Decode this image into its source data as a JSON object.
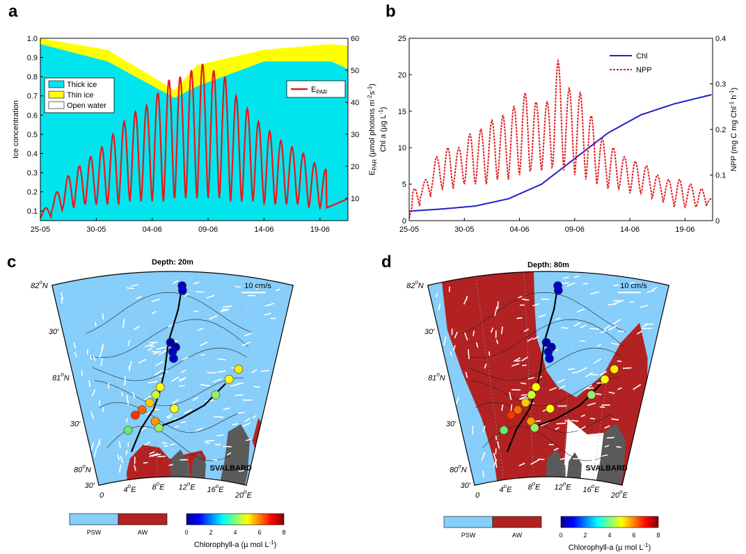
{
  "panel_letters": {
    "a": "a",
    "b": "b",
    "c": "c",
    "d": "d"
  },
  "chart_data": [
    {
      "type": "area",
      "panel": "a",
      "ylabel": "Ice concentration",
      "y2label": "E",
      "y2label_sub": "PAR",
      "y2label_rest": " (µmol photons m",
      "y2label_tail": "s",
      "x_ticks": [
        "25-05",
        "30-05",
        "04-06",
        "09-06",
        "14-06",
        "19-06"
      ],
      "x_tick_days": [
        0,
        5,
        10,
        15,
        20,
        25
      ],
      "xlim": [
        0,
        27.5
      ],
      "ylim": [
        0.05,
        1.0
      ],
      "y_ticks": [
        "0.1",
        "0.2",
        "0.3",
        "0.4",
        "0.5",
        "0.6",
        "0.7",
        "0.8",
        "0.9",
        "1.0"
      ],
      "y2lim": [
        3,
        60
      ],
      "y2_ticks": [
        "10",
        "20",
        "30",
        "40",
        "50",
        "60"
      ],
      "legend": [
        "Thick ice",
        "Thin ice",
        "Open water"
      ],
      "legend2": "E",
      "legend2_sub": "PAR",
      "colors": {
        "thick": "#00e5ee",
        "thin": "#ffff00",
        "open": "#ffffff",
        "epar": "#e31a1c"
      },
      "series": [
        {
          "name": "Thick ice",
          "x": [
            0,
            6,
            12,
            14,
            20,
            26,
            27.5
          ],
          "values": [
            0.97,
            0.88,
            0.69,
            0.75,
            0.88,
            0.88,
            0.84
          ]
        },
        {
          "name": "Thin ice",
          "x": [
            0,
            6,
            12,
            14,
            20,
            26,
            27.5
          ],
          "values": [
            0.03,
            0.06,
            0.04,
            0.11,
            0.06,
            0.09,
            0.12
          ]
        },
        {
          "name": "E_PAR",
          "axis": "right",
          "day_peaks": [
            7,
            12,
            17,
            20,
            23,
            26,
            30,
            34,
            37,
            39,
            43,
            47,
            48,
            50,
            52,
            50,
            48,
            42,
            38,
            34,
            31,
            28,
            26,
            24,
            21,
            19,
            9,
            10
          ],
          "night_min": [
            4,
            6,
            7,
            8,
            8,
            8,
            8,
            9,
            9,
            9,
            9,
            9,
            10,
            10,
            10,
            10,
            10,
            9,
            9,
            9,
            8,
            8,
            8,
            8,
            7,
            7,
            7,
            8
          ]
        }
      ]
    },
    {
      "type": "line",
      "panel": "b",
      "ylabel": "Chl a (µg L",
      "y2label": "NPP (mg C mg Chl",
      "x_ticks": [
        "25-05",
        "30-05",
        "04-06",
        "09-06",
        "14-06",
        "19-06"
      ],
      "x_tick_days": [
        0,
        5,
        10,
        15,
        20,
        25
      ],
      "xlim": [
        0,
        27.5
      ],
      "ylim": [
        0,
        25
      ],
      "y_ticks": [
        "0",
        "5",
        "10",
        "15",
        "20",
        "25"
      ],
      "y2lim": [
        0,
        0.4
      ],
      "y2_ticks": [
        "0",
        "0.1",
        "0.2",
        "0.3",
        "0.4"
      ],
      "legend": [
        "Chl",
        "NPP"
      ],
      "colors": {
        "chl": "#1f1fcc",
        "npp": "#e31a1c"
      },
      "series": [
        {
          "name": "Chl",
          "x": [
            0,
            3,
            6,
            9,
            12,
            15,
            18,
            21,
            24,
            27.5
          ],
          "values": [
            1.3,
            1.6,
            2.0,
            3.0,
            5.0,
            8.5,
            12.0,
            14.5,
            16.0,
            17.3
          ]
        },
        {
          "name": "NPP",
          "axis": "right",
          "day_peaks": [
            0.07,
            0.09,
            0.14,
            0.16,
            0.16,
            0.19,
            0.2,
            0.22,
            0.23,
            0.25,
            0.28,
            0.26,
            0.26,
            0.35,
            0.29,
            0.28,
            0.23,
            0.18,
            0.16,
            0.14,
            0.13,
            0.12,
            0.1,
            0.09,
            0.09,
            0.08,
            0.07,
            0.05
          ],
          "night_min": [
            0.03,
            0.05,
            0.07,
            0.07,
            0.08,
            0.08,
            0.08,
            0.09,
            0.09,
            0.1,
            0.1,
            0.11,
            0.11,
            0.12,
            0.11,
            0.1,
            0.09,
            0.08,
            0.07,
            0.07,
            0.06,
            0.06,
            0.05,
            0.04,
            0.03,
            0.03,
            0.03,
            0.04
          ]
        }
      ]
    }
  ],
  "maps": [
    {
      "panel": "c",
      "depth": "Depth: 20m",
      "aw_variant": "small"
    },
    {
      "panel": "d",
      "depth": "Depth: 80m",
      "aw_variant": "large"
    }
  ],
  "map_labels": {
    "lat82": "82",
    "lat81": "81",
    "lat80": "80",
    "N": "N",
    "min30": "30'",
    "deg": "o",
    "lon0": "0",
    "lon4": "4",
    "lon8": "8",
    "lon12": "12",
    "lon16": "16",
    "lon20": "20",
    "E": "E",
    "speed": "10 cm/s",
    "svalbard": "SVALBARD"
  },
  "map_colors": {
    "psw": "#87cefa",
    "aw": "#b22222",
    "land": "#5a5a5a",
    "ice_gap": "#ffffff"
  },
  "legend_water": {
    "psw": "PSW",
    "aw": "AW"
  },
  "legend_chl": {
    "title": "Chlorophyll-a (µ mol L",
    "ticks": [
      "0",
      "2",
      "4",
      "6",
      "8"
    ]
  }
}
